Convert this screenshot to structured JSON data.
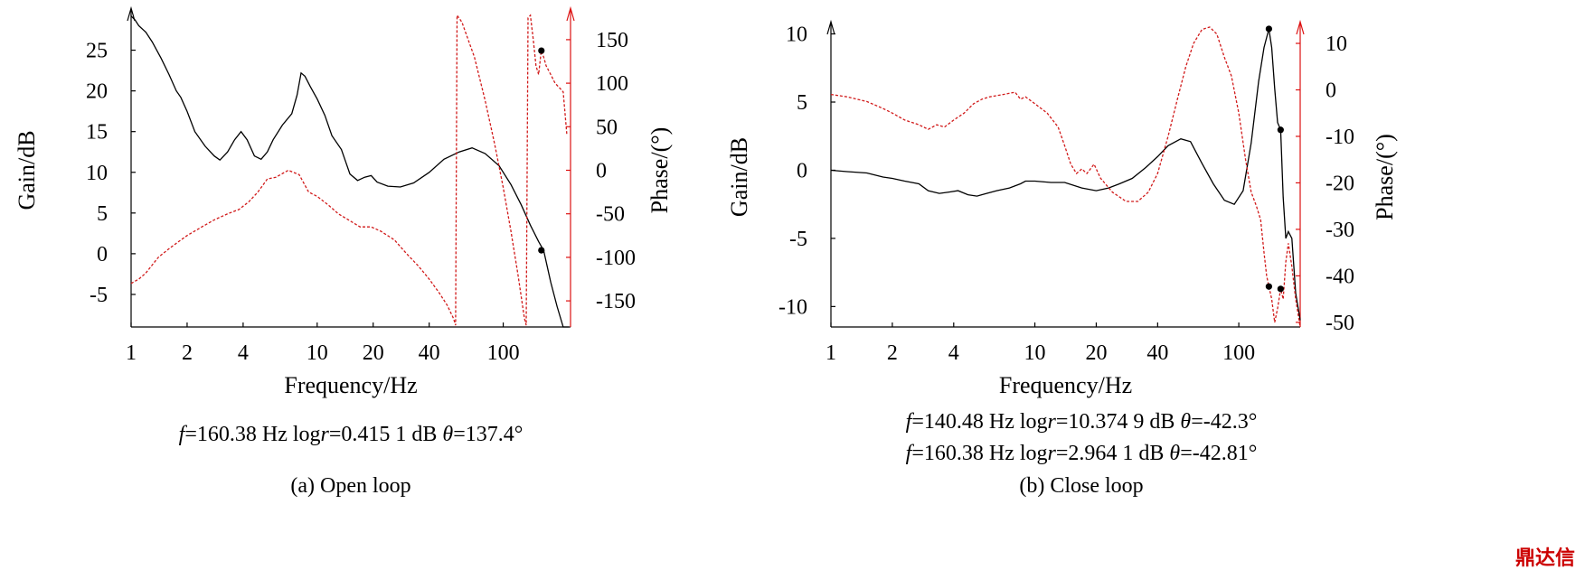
{
  "watermark": "鼎达信",
  "chart_data": [
    {
      "type": "line",
      "caption": "(a) Open loop",
      "xlabel": "Frequency/Hz",
      "ylabel_left": "Gain/dB",
      "ylabel_right": "Phase/(°)",
      "x_scale": "log",
      "xlim": [
        1,
        230
      ],
      "x_ticks": [
        1,
        2,
        4,
        10,
        20,
        40,
        100
      ],
      "x_tick_labels": [
        "1",
        "2",
        "4",
        "10",
        "20",
        "40",
        "100"
      ],
      "ylim_left": [
        -9,
        29.5
      ],
      "y_ticks_left": [
        -5,
        0,
        5,
        10,
        15,
        20,
        25
      ],
      "y_tick_labels_left": [
        "-5",
        "0",
        "5",
        "10",
        "15",
        "20",
        "25"
      ],
      "ylim_right": [
        -180,
        180
      ],
      "y_ticks_right": [
        -150,
        -100,
        -50,
        0,
        50,
        100,
        150
      ],
      "y_tick_labels_right": [
        "-150",
        "-100",
        "-50",
        "0",
        "50",
        "100",
        "150"
      ],
      "grid": false,
      "annotations": [
        "f=160.38 Hz    logr=0.415 1 dB    θ=137.4°"
      ],
      "markers": [
        {
          "axis": "left",
          "x": 160.38,
          "y": 0.42
        },
        {
          "axis": "right",
          "x": 160.38,
          "y": 137.4
        }
      ],
      "series": [
        {
          "axis": "left",
          "color": "#000000",
          "style": "solid",
          "x": [
            1,
            1.05,
            1.1,
            1.2,
            1.3,
            1.45,
            1.6,
            1.75,
            1.85,
            2.0,
            2.2,
            2.5,
            2.8,
            3.0,
            3.3,
            3.6,
            3.9,
            4.2,
            4.6,
            5.0,
            5.4,
            5.8,
            6.5,
            7.3,
            7.8,
            8.2,
            8.6,
            9.2,
            10.0,
            11.0,
            12.0,
            13.5,
            15.0,
            16.5,
            18.0,
            19.5,
            21.0,
            24.0,
            28.0,
            33.0,
            40.0,
            48.0,
            58.0,
            68.0,
            80.0,
            95.0,
            110.0,
            125.0,
            140.0,
            155.0,
            165.0,
            180.0,
            195.0,
            210.0,
            225.0
          ],
          "y": [
            29.2,
            28.7,
            28.0,
            27.2,
            26.0,
            24.0,
            22.0,
            20.0,
            19.2,
            17.5,
            15.0,
            13.2,
            12.0,
            11.5,
            12.5,
            14.0,
            15.0,
            14.0,
            12.0,
            11.6,
            12.5,
            14.0,
            15.8,
            17.2,
            19.5,
            22.2,
            21.8,
            20.5,
            19.0,
            17.0,
            14.5,
            12.8,
            9.8,
            9.0,
            9.4,
            9.6,
            8.8,
            8.3,
            8.2,
            8.7,
            10.0,
            11.6,
            12.5,
            13.0,
            12.3,
            10.8,
            8.5,
            6.0,
            3.5,
            1.5,
            0.4,
            -3.5,
            -6.5,
            -9.0,
            -9.0
          ]
        },
        {
          "axis": "right",
          "color": "#d11a1a",
          "style": "dashed",
          "x": [
            1,
            1.1,
            1.2,
            1.4,
            1.6,
            1.8,
            2.0,
            2.4,
            2.8,
            3.3,
            3.8,
            4.3,
            4.8,
            5.4,
            6.0,
            7.0,
            8.0,
            9.0,
            10.0,
            11.5,
            13.0,
            15.0,
            17.0,
            19.5,
            22.0,
            26.0,
            30.0,
            35.0,
            40.0,
            45.0,
            50.0,
            54.0,
            55.5,
            56.5,
            60.0,
            70.0,
            80.0,
            90.0,
            100.0,
            110.0,
            120.0,
            130.0,
            133.0,
            136.0,
            140.0,
            145.0,
            150.0,
            155.0,
            160.0,
            165.0,
            170.0,
            180.0,
            190.0,
            200.0,
            210.0,
            220.0
          ],
          "y": [
            -130,
            -125,
            -118,
            -100,
            -90,
            -82,
            -75,
            -65,
            -57,
            -50,
            -45,
            -36,
            -25,
            -10,
            -8,
            0,
            -5,
            -25,
            -30,
            -40,
            -50,
            -58,
            -65,
            -65,
            -70,
            -80,
            -95,
            -110,
            -125,
            -140,
            -155,
            -170,
            -178,
            178,
            170,
            130,
            80,
            30,
            -20,
            -70,
            -120,
            -170,
            -178,
            175,
            178,
            150,
            120,
            110,
            137,
            130,
            120,
            110,
            100,
            95,
            90,
            40
          ]
        }
      ]
    },
    {
      "type": "line",
      "caption": "(b) Close loop",
      "xlabel": "Frequency/Hz",
      "ylabel_left": "Gain/dB",
      "ylabel_right": "Phase/(°)",
      "x_scale": "log",
      "xlim": [
        1,
        200
      ],
      "x_ticks": [
        1,
        2,
        4,
        10,
        20,
        40,
        100
      ],
      "x_tick_labels": [
        "1",
        "2",
        "4",
        "10",
        "20",
        "40",
        "100"
      ],
      "ylim_left": [
        -11.5,
        10.5
      ],
      "y_ticks_left": [
        -10,
        -5,
        0,
        5,
        10
      ],
      "y_tick_labels_left": [
        "-10",
        "-5",
        "0",
        "5",
        "10"
      ],
      "ylim_right": [
        -51,
        13.5
      ],
      "y_ticks_right": [
        -50,
        -40,
        -30,
        -20,
        -10,
        0,
        10
      ],
      "y_tick_labels_right": [
        "-50",
        "-40",
        "-30",
        "-20",
        "-10",
        "0",
        "10"
      ],
      "grid": false,
      "annotations": [
        "f=140.48 Hz    logr=10.374 9 dB    θ=-42.3°",
        "f=160.38 Hz    logr=2.964 1 dB    θ=-42.81°"
      ],
      "markers": [
        {
          "axis": "left",
          "x": 140.48,
          "y": 10.37
        },
        {
          "axis": "left",
          "x": 160.38,
          "y": 2.96
        },
        {
          "axis": "right",
          "x": 140.48,
          "y": -42.3
        },
        {
          "axis": "right",
          "x": 160.38,
          "y": -42.81
        }
      ],
      "series": [
        {
          "axis": "left",
          "color": "#000000",
          "style": "solid",
          "x": [
            1,
            1.2,
            1.5,
            1.8,
            2.0,
            2.3,
            2.7,
            3.0,
            3.4,
            3.8,
            4.2,
            4.7,
            5.2,
            5.8,
            6.5,
            7.5,
            8.5,
            9.0,
            10.0,
            12.0,
            14.0,
            17.0,
            20.0,
            23.0,
            26.0,
            30.0,
            35.0,
            40.0,
            45.0,
            52.0,
            58.0,
            66.0,
            75.0,
            85.0,
            95.0,
            105.0,
            115.0,
            125.0,
            133.0,
            140.48,
            145.0,
            150.0,
            155.0,
            160.38,
            165.0,
            170.0,
            175.0,
            182.0,
            190.0,
            200.0
          ],
          "y": [
            0.0,
            -0.1,
            -0.2,
            -0.5,
            -0.6,
            -0.8,
            -1.0,
            -1.5,
            -1.7,
            -1.6,
            -1.5,
            -1.8,
            -1.9,
            -1.7,
            -1.5,
            -1.3,
            -1.0,
            -0.8,
            -0.8,
            -0.9,
            -0.9,
            -1.3,
            -1.5,
            -1.3,
            -1.0,
            -0.6,
            0.2,
            1.0,
            1.8,
            2.3,
            2.1,
            0.5,
            -1.0,
            -2.2,
            -2.5,
            -1.5,
            2.0,
            6.5,
            9.0,
            10.37,
            9.0,
            6.0,
            3.5,
            2.96,
            -2.0,
            -5.0,
            -4.5,
            -5.0,
            -9.0,
            -11.0
          ]
        },
        {
          "axis": "right",
          "color": "#d11a1a",
          "style": "dashed",
          "x": [
            1,
            1.2,
            1.5,
            1.8,
            2.0,
            2.3,
            2.7,
            3.0,
            3.3,
            3.6,
            4.0,
            4.5,
            5.0,
            5.5,
            6.0,
            7.0,
            8.0,
            8.5,
            9.0,
            10.0,
            11.5,
            13.0,
            14.0,
            15.0,
            16.0,
            17.0,
            18.0,
            19.5,
            21.0,
            24.0,
            28.0,
            32.0,
            36.0,
            40.0,
            45.0,
            50.0,
            55.0,
            60.0,
            66.0,
            72.0,
            78.0,
            85.0,
            92.0,
            100.0,
            108.0,
            115.0,
            122.0,
            128.0,
            133.0,
            137.0,
            140.48,
            145.0,
            150.0,
            155.0,
            160.38,
            165.0,
            170.0,
            175.0,
            182.0,
            190.0,
            200.0
          ],
          "y": [
            -1,
            -1.5,
            -2.5,
            -4,
            -5,
            -6.5,
            -7.5,
            -8.5,
            -7.5,
            -8,
            -6.5,
            -5,
            -3,
            -2,
            -1.5,
            -1,
            -0.5,
            -2,
            -1.5,
            -3,
            -5,
            -8,
            -12,
            -16,
            -18,
            -17,
            -18,
            -16,
            -19,
            -22,
            -24,
            -24,
            -22,
            -18,
            -10,
            -2,
            5,
            10,
            13,
            14,
            12,
            7,
            3,
            -5,
            -15,
            -22,
            -25,
            -28,
            -35,
            -40,
            -42.3,
            -45,
            -50,
            -47,
            -42.81,
            -45,
            -37,
            -33,
            -38,
            -45,
            -51
          ]
        }
      ]
    }
  ]
}
